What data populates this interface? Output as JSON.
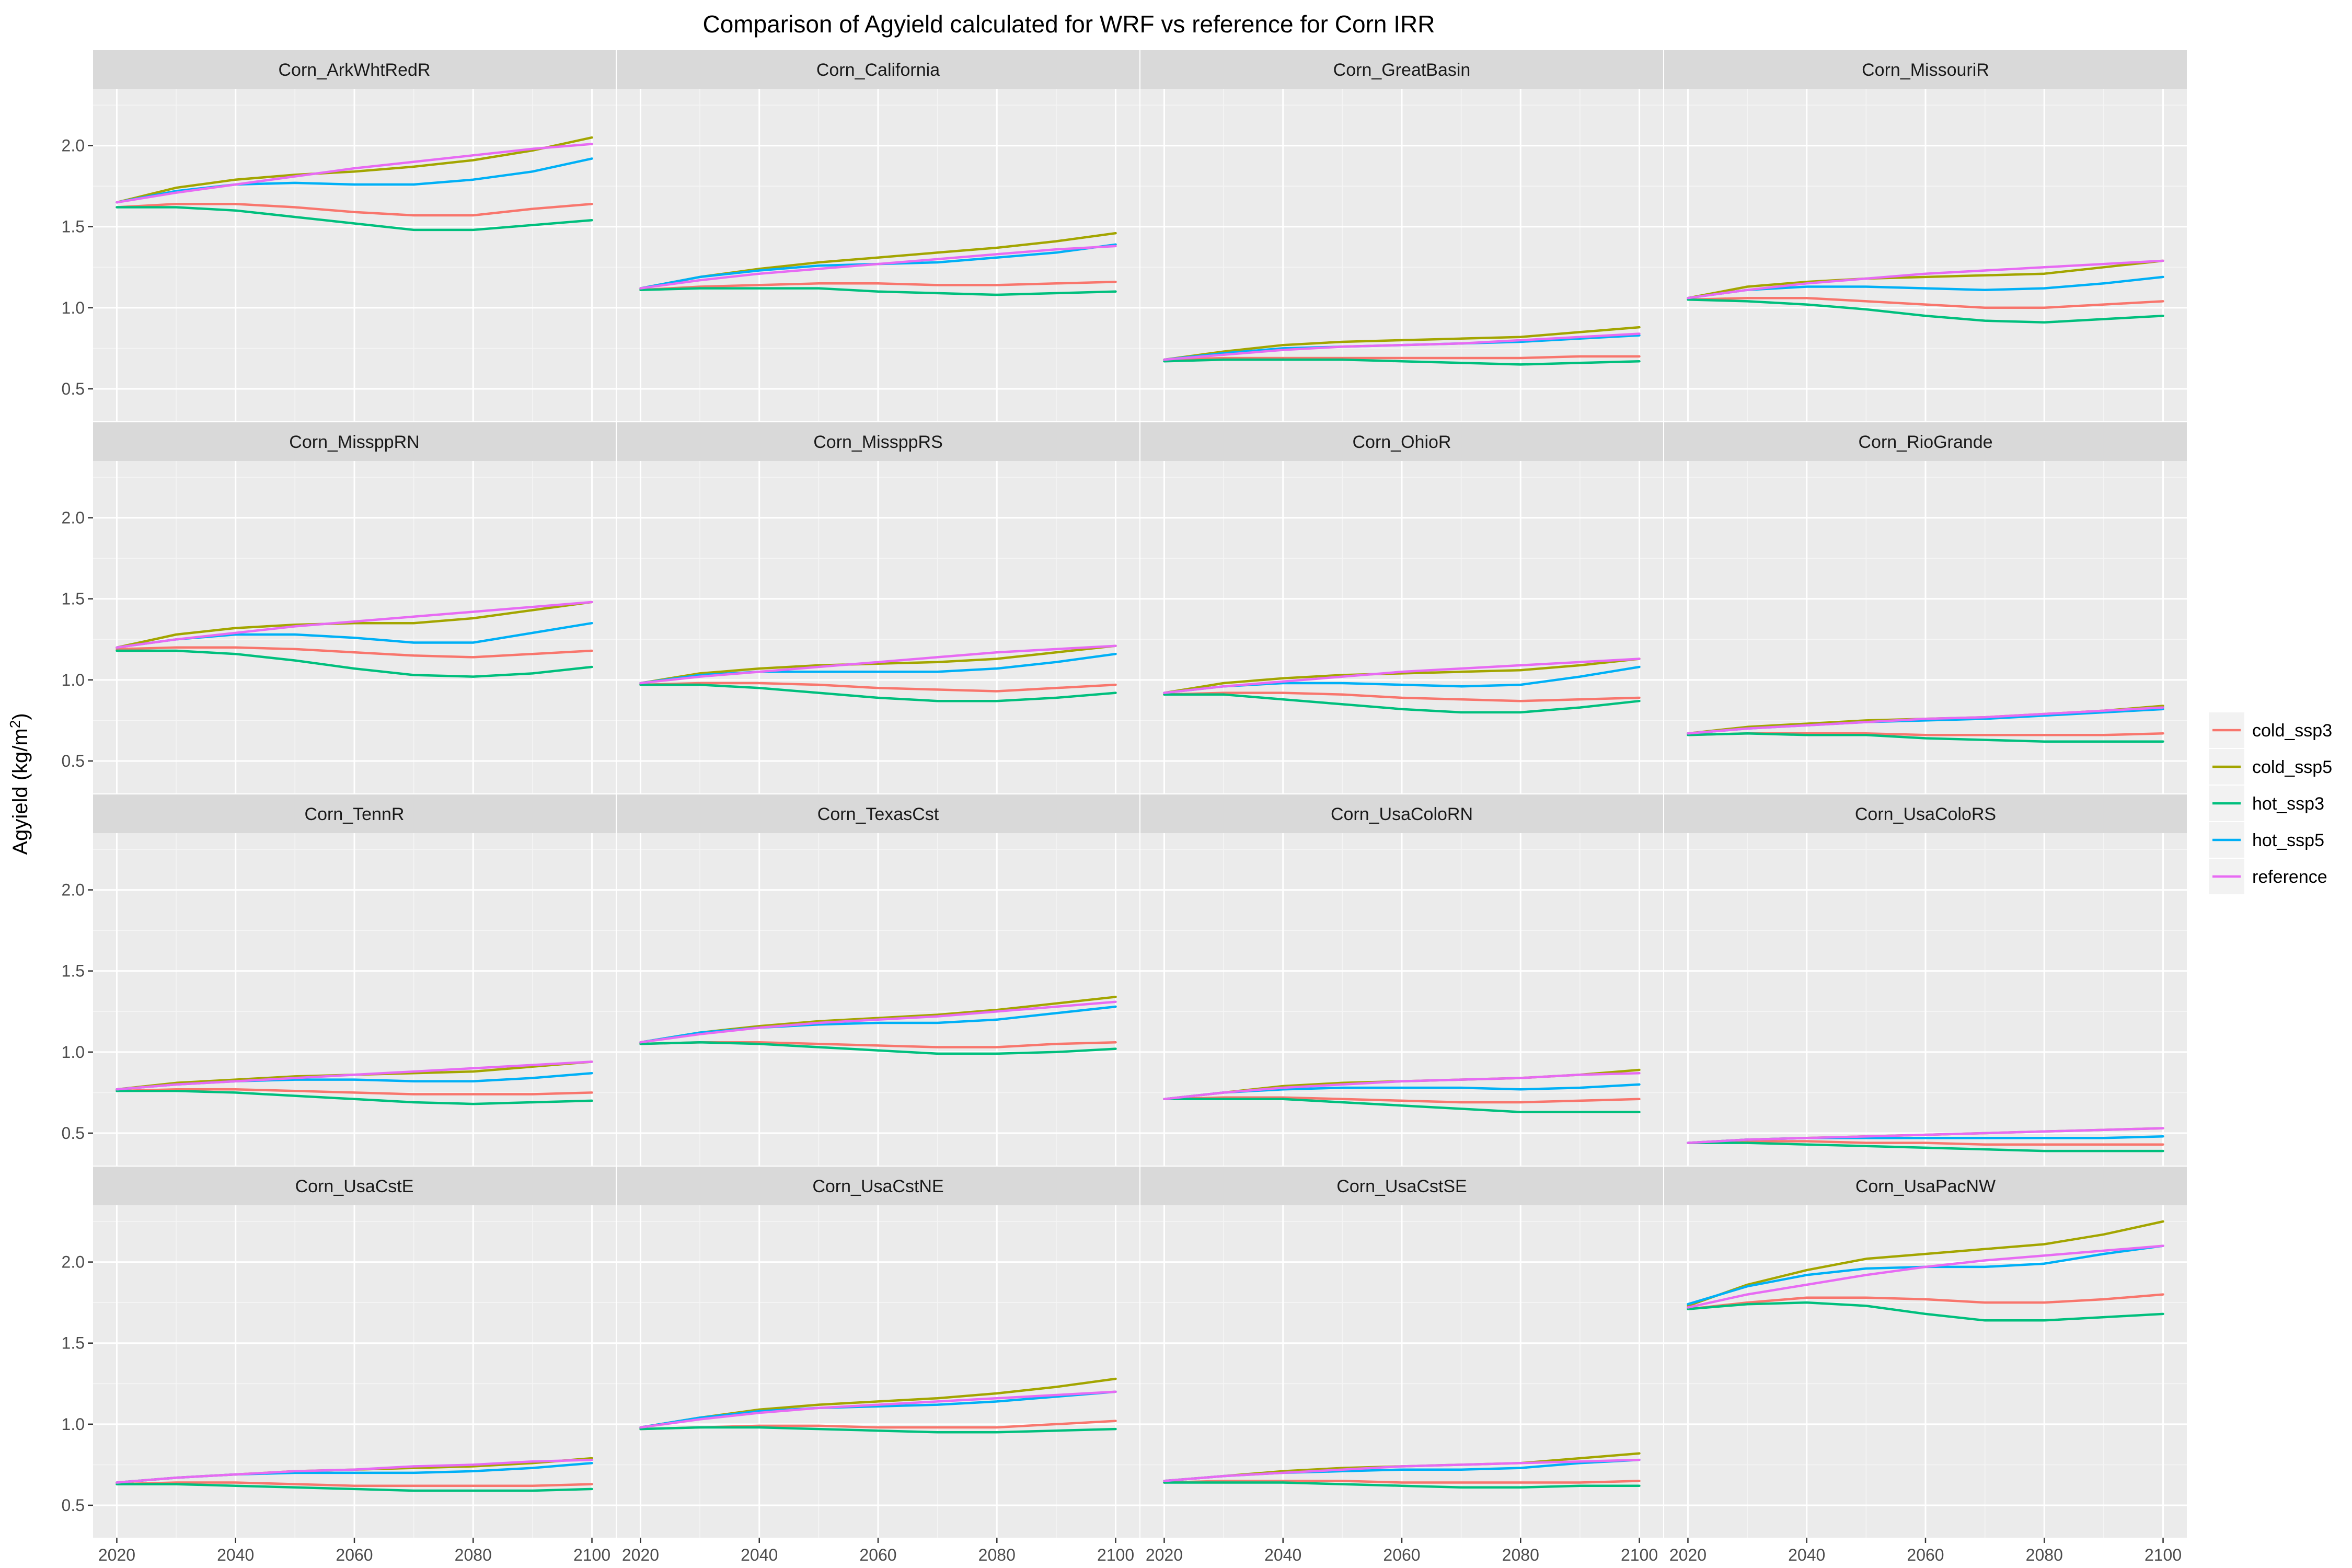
{
  "chart_data": {
    "type": "line",
    "title": "Comparison of Agyield calculated for WRF vs reference for Corn IRR",
    "ylabel": "Agyield (kg/m²)",
    "xlabel": "",
    "xlim": [
      2016,
      2104
    ],
    "ylim": [
      0.3,
      2.35
    ],
    "x_ticks": [
      2020,
      2040,
      2060,
      2080,
      2100
    ],
    "y_ticks": [
      0.5,
      1.0,
      1.5,
      2.0
    ],
    "y_tick_labels": [
      "0.5",
      "1.0",
      "1.5",
      "2.0"
    ],
    "grid": true,
    "legend_position": "right",
    "x": [
      2020,
      2030,
      2040,
      2050,
      2060,
      2070,
      2080,
      2090,
      2100
    ],
    "series": [
      {
        "name": "cold_ssp3",
        "color": "#F8766D"
      },
      {
        "name": "cold_ssp5",
        "color": "#A3A500"
      },
      {
        "name": "hot_ssp3",
        "color": "#00BF7D"
      },
      {
        "name": "hot_ssp5",
        "color": "#00B0F6"
      },
      {
        "name": "reference",
        "color": "#E76BF3"
      }
    ],
    "facets": [
      {
        "name": "Corn_ArkWhtRedR",
        "values": {
          "cold_ssp3": [
            1.62,
            1.64,
            1.64,
            1.62,
            1.59,
            1.57,
            1.57,
            1.61,
            1.64
          ],
          "cold_ssp5": [
            1.65,
            1.74,
            1.79,
            1.82,
            1.84,
            1.87,
            1.91,
            1.97,
            2.05
          ],
          "hot_ssp3": [
            1.62,
            1.62,
            1.6,
            1.56,
            1.52,
            1.48,
            1.48,
            1.51,
            1.54
          ],
          "hot_ssp5": [
            1.65,
            1.72,
            1.76,
            1.77,
            1.76,
            1.76,
            1.79,
            1.84,
            1.92
          ],
          "reference": [
            1.65,
            1.71,
            1.76,
            1.81,
            1.86,
            1.9,
            1.94,
            1.98,
            2.01
          ]
        }
      },
      {
        "name": "Corn_California",
        "values": {
          "cold_ssp3": [
            1.11,
            1.13,
            1.14,
            1.15,
            1.15,
            1.14,
            1.14,
            1.15,
            1.16
          ],
          "cold_ssp5": [
            1.12,
            1.19,
            1.24,
            1.28,
            1.31,
            1.34,
            1.37,
            1.41,
            1.46
          ],
          "hot_ssp3": [
            1.11,
            1.12,
            1.12,
            1.12,
            1.1,
            1.09,
            1.08,
            1.09,
            1.1
          ],
          "hot_ssp5": [
            1.12,
            1.19,
            1.23,
            1.26,
            1.27,
            1.28,
            1.31,
            1.34,
            1.39
          ],
          "reference": [
            1.12,
            1.17,
            1.21,
            1.24,
            1.27,
            1.3,
            1.33,
            1.36,
            1.38
          ]
        }
      },
      {
        "name": "Corn_GreatBasin",
        "values": {
          "cold_ssp3": [
            0.68,
            0.69,
            0.69,
            0.69,
            0.69,
            0.69,
            0.69,
            0.7,
            0.7
          ],
          "cold_ssp5": [
            0.68,
            0.73,
            0.77,
            0.79,
            0.8,
            0.81,
            0.82,
            0.85,
            0.88
          ],
          "hot_ssp3": [
            0.67,
            0.68,
            0.68,
            0.68,
            0.67,
            0.66,
            0.65,
            0.66,
            0.67
          ],
          "hot_ssp5": [
            0.68,
            0.72,
            0.75,
            0.76,
            0.77,
            0.78,
            0.79,
            0.81,
            0.83
          ],
          "reference": [
            0.68,
            0.71,
            0.74,
            0.76,
            0.77,
            0.78,
            0.8,
            0.82,
            0.84
          ]
        }
      },
      {
        "name": "Corn_MissouriR",
        "values": {
          "cold_ssp3": [
            1.05,
            1.06,
            1.06,
            1.04,
            1.02,
            1.0,
            1.0,
            1.02,
            1.04
          ],
          "cold_ssp5": [
            1.06,
            1.13,
            1.16,
            1.18,
            1.19,
            1.2,
            1.21,
            1.25,
            1.29
          ],
          "hot_ssp3": [
            1.05,
            1.04,
            1.02,
            0.99,
            0.95,
            0.92,
            0.91,
            0.93,
            0.95
          ],
          "hot_ssp5": [
            1.06,
            1.11,
            1.13,
            1.13,
            1.12,
            1.11,
            1.12,
            1.15,
            1.19
          ],
          "reference": [
            1.06,
            1.11,
            1.15,
            1.18,
            1.21,
            1.23,
            1.25,
            1.27,
            1.29
          ]
        }
      },
      {
        "name": "Corn_MissppRN",
        "values": {
          "cold_ssp3": [
            1.19,
            1.2,
            1.2,
            1.19,
            1.17,
            1.15,
            1.14,
            1.16,
            1.18
          ],
          "cold_ssp5": [
            1.2,
            1.28,
            1.32,
            1.34,
            1.35,
            1.35,
            1.38,
            1.43,
            1.48
          ],
          "hot_ssp3": [
            1.18,
            1.18,
            1.16,
            1.12,
            1.07,
            1.03,
            1.02,
            1.04,
            1.08
          ],
          "hot_ssp5": [
            1.2,
            1.25,
            1.28,
            1.28,
            1.26,
            1.23,
            1.23,
            1.29,
            1.35
          ],
          "reference": [
            1.2,
            1.25,
            1.29,
            1.33,
            1.36,
            1.39,
            1.42,
            1.45,
            1.48
          ]
        }
      },
      {
        "name": "Corn_MissppRS",
        "values": {
          "cold_ssp3": [
            0.97,
            0.98,
            0.98,
            0.97,
            0.95,
            0.94,
            0.93,
            0.95,
            0.97
          ],
          "cold_ssp5": [
            0.98,
            1.04,
            1.07,
            1.09,
            1.1,
            1.11,
            1.13,
            1.17,
            1.21
          ],
          "hot_ssp3": [
            0.97,
            0.97,
            0.95,
            0.92,
            0.89,
            0.87,
            0.87,
            0.89,
            0.92
          ],
          "hot_ssp5": [
            0.98,
            1.03,
            1.05,
            1.05,
            1.05,
            1.05,
            1.07,
            1.11,
            1.16
          ],
          "reference": [
            0.98,
            1.02,
            1.05,
            1.08,
            1.11,
            1.14,
            1.17,
            1.19,
            1.21
          ]
        }
      },
      {
        "name": "Corn_OhioR",
        "values": {
          "cold_ssp3": [
            0.91,
            0.92,
            0.92,
            0.91,
            0.89,
            0.88,
            0.87,
            0.88,
            0.89
          ],
          "cold_ssp5": [
            0.92,
            0.98,
            1.01,
            1.03,
            1.04,
            1.05,
            1.06,
            1.09,
            1.13
          ],
          "hot_ssp3": [
            0.91,
            0.91,
            0.88,
            0.85,
            0.82,
            0.8,
            0.8,
            0.83,
            0.87
          ],
          "hot_ssp5": [
            0.92,
            0.96,
            0.98,
            0.98,
            0.97,
            0.96,
            0.97,
            1.02,
            1.08
          ],
          "reference": [
            0.92,
            0.96,
            0.99,
            1.02,
            1.05,
            1.07,
            1.09,
            1.11,
            1.13
          ]
        }
      },
      {
        "name": "Corn_RioGrande",
        "values": {
          "cold_ssp3": [
            0.66,
            0.67,
            0.67,
            0.67,
            0.66,
            0.66,
            0.66,
            0.66,
            0.67
          ],
          "cold_ssp5": [
            0.67,
            0.71,
            0.73,
            0.75,
            0.76,
            0.77,
            0.79,
            0.81,
            0.84
          ],
          "hot_ssp3": [
            0.66,
            0.67,
            0.66,
            0.66,
            0.64,
            0.63,
            0.62,
            0.62,
            0.62
          ],
          "hot_ssp5": [
            0.67,
            0.7,
            0.72,
            0.74,
            0.75,
            0.76,
            0.78,
            0.8,
            0.82
          ],
          "reference": [
            0.67,
            0.7,
            0.72,
            0.74,
            0.76,
            0.77,
            0.79,
            0.81,
            0.83
          ]
        }
      },
      {
        "name": "Corn_TennR",
        "values": {
          "cold_ssp3": [
            0.76,
            0.77,
            0.77,
            0.76,
            0.75,
            0.74,
            0.74,
            0.74,
            0.75
          ],
          "cold_ssp5": [
            0.77,
            0.81,
            0.83,
            0.85,
            0.86,
            0.87,
            0.88,
            0.91,
            0.94
          ],
          "hot_ssp3": [
            0.76,
            0.76,
            0.75,
            0.73,
            0.71,
            0.69,
            0.68,
            0.69,
            0.7
          ],
          "hot_ssp5": [
            0.77,
            0.8,
            0.82,
            0.83,
            0.83,
            0.82,
            0.82,
            0.84,
            0.87
          ],
          "reference": [
            0.77,
            0.8,
            0.82,
            0.84,
            0.86,
            0.88,
            0.9,
            0.92,
            0.94
          ]
        }
      },
      {
        "name": "Corn_TexasCst",
        "values": {
          "cold_ssp3": [
            1.05,
            1.06,
            1.06,
            1.05,
            1.04,
            1.03,
            1.03,
            1.05,
            1.06
          ],
          "cold_ssp5": [
            1.06,
            1.12,
            1.16,
            1.19,
            1.21,
            1.23,
            1.26,
            1.3,
            1.34
          ],
          "hot_ssp3": [
            1.05,
            1.06,
            1.05,
            1.03,
            1.01,
            0.99,
            0.99,
            1.0,
            1.02
          ],
          "hot_ssp5": [
            1.06,
            1.12,
            1.15,
            1.17,
            1.18,
            1.18,
            1.2,
            1.24,
            1.28
          ],
          "reference": [
            1.06,
            1.11,
            1.15,
            1.18,
            1.2,
            1.22,
            1.25,
            1.28,
            1.31
          ]
        }
      },
      {
        "name": "Corn_UsaColoRN",
        "values": {
          "cold_ssp3": [
            0.71,
            0.72,
            0.72,
            0.71,
            0.7,
            0.69,
            0.69,
            0.7,
            0.71
          ],
          "cold_ssp5": [
            0.71,
            0.75,
            0.79,
            0.81,
            0.82,
            0.83,
            0.84,
            0.86,
            0.89
          ],
          "hot_ssp3": [
            0.71,
            0.71,
            0.71,
            0.69,
            0.67,
            0.65,
            0.63,
            0.63,
            0.63
          ],
          "hot_ssp5": [
            0.71,
            0.75,
            0.77,
            0.78,
            0.78,
            0.78,
            0.77,
            0.78,
            0.8
          ],
          "reference": [
            0.71,
            0.75,
            0.78,
            0.8,
            0.82,
            0.83,
            0.84,
            0.86,
            0.87
          ]
        }
      },
      {
        "name": "Corn_UsaColoRS",
        "values": {
          "cold_ssp3": [
            0.44,
            0.45,
            0.45,
            0.44,
            0.44,
            0.43,
            0.43,
            0.43,
            0.43
          ],
          "cold_ssp5": [
            0.44,
            0.46,
            0.47,
            0.48,
            0.49,
            0.5,
            0.51,
            0.52,
            0.53
          ],
          "hot_ssp3": [
            0.44,
            0.44,
            0.43,
            0.42,
            0.41,
            0.4,
            0.39,
            0.39,
            0.39
          ],
          "hot_ssp5": [
            0.44,
            0.46,
            0.47,
            0.47,
            0.47,
            0.47,
            0.47,
            0.47,
            0.48
          ],
          "reference": [
            0.44,
            0.46,
            0.47,
            0.48,
            0.49,
            0.5,
            0.51,
            0.52,
            0.53
          ]
        }
      },
      {
        "name": "Corn_UsaCstE",
        "values": {
          "cold_ssp3": [
            0.63,
            0.64,
            0.64,
            0.63,
            0.62,
            0.62,
            0.62,
            0.62,
            0.63
          ],
          "cold_ssp5": [
            0.64,
            0.67,
            0.69,
            0.71,
            0.72,
            0.73,
            0.74,
            0.76,
            0.79
          ],
          "hot_ssp3": [
            0.63,
            0.63,
            0.62,
            0.61,
            0.6,
            0.59,
            0.59,
            0.59,
            0.6
          ],
          "hot_ssp5": [
            0.64,
            0.67,
            0.69,
            0.7,
            0.7,
            0.7,
            0.71,
            0.73,
            0.76
          ],
          "reference": [
            0.64,
            0.67,
            0.69,
            0.71,
            0.72,
            0.74,
            0.75,
            0.77,
            0.78
          ]
        }
      },
      {
        "name": "Corn_UsaCstNE",
        "values": {
          "cold_ssp3": [
            0.97,
            0.98,
            0.99,
            0.99,
            0.98,
            0.98,
            0.98,
            1.0,
            1.02
          ],
          "cold_ssp5": [
            0.98,
            1.04,
            1.09,
            1.12,
            1.14,
            1.16,
            1.19,
            1.23,
            1.28
          ],
          "hot_ssp3": [
            0.97,
            0.98,
            0.98,
            0.97,
            0.96,
            0.95,
            0.95,
            0.96,
            0.97
          ],
          "hot_ssp5": [
            0.98,
            1.04,
            1.08,
            1.1,
            1.11,
            1.12,
            1.14,
            1.17,
            1.2
          ],
          "reference": [
            0.98,
            1.03,
            1.07,
            1.1,
            1.12,
            1.14,
            1.16,
            1.18,
            1.2
          ]
        }
      },
      {
        "name": "Corn_UsaCstSE",
        "values": {
          "cold_ssp3": [
            0.64,
            0.65,
            0.65,
            0.65,
            0.64,
            0.64,
            0.64,
            0.64,
            0.65
          ],
          "cold_ssp5": [
            0.65,
            0.68,
            0.71,
            0.73,
            0.74,
            0.75,
            0.76,
            0.79,
            0.82
          ],
          "hot_ssp3": [
            0.64,
            0.64,
            0.64,
            0.63,
            0.62,
            0.61,
            0.61,
            0.62,
            0.62
          ],
          "hot_ssp5": [
            0.65,
            0.68,
            0.7,
            0.71,
            0.72,
            0.72,
            0.73,
            0.76,
            0.78
          ],
          "reference": [
            0.65,
            0.68,
            0.7,
            0.72,
            0.74,
            0.75,
            0.76,
            0.77,
            0.78
          ]
        }
      },
      {
        "name": "Corn_UsaPacNW",
        "values": {
          "cold_ssp3": [
            1.71,
            1.75,
            1.78,
            1.78,
            1.77,
            1.75,
            1.75,
            1.77,
            1.8
          ],
          "cold_ssp5": [
            1.73,
            1.86,
            1.95,
            2.02,
            2.05,
            2.08,
            2.11,
            2.17,
            2.25
          ],
          "hot_ssp3": [
            1.71,
            1.74,
            1.75,
            1.73,
            1.68,
            1.64,
            1.64,
            1.66,
            1.68
          ],
          "hot_ssp5": [
            1.74,
            1.85,
            1.92,
            1.96,
            1.97,
            1.97,
            1.99,
            2.05,
            2.1
          ],
          "reference": [
            1.72,
            1.8,
            1.86,
            1.92,
            1.97,
            2.01,
            2.04,
            2.07,
            2.1
          ]
        }
      }
    ]
  }
}
